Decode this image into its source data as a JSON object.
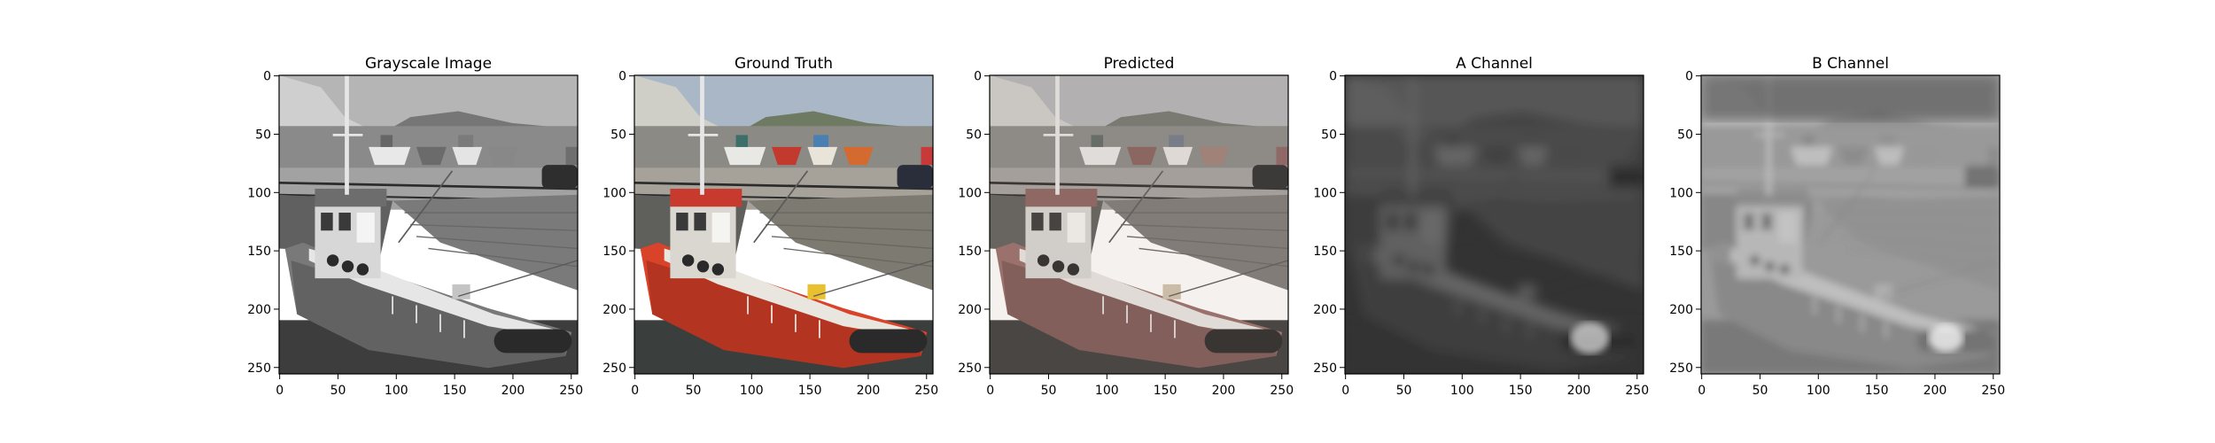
{
  "figure": {
    "panels": [
      {
        "title": "Grayscale Image",
        "mode": "gray"
      },
      {
        "title": "Ground Truth",
        "mode": "color"
      },
      {
        "title": "Predicted",
        "mode": "pred"
      },
      {
        "title": "A Channel",
        "mode": "chanA"
      },
      {
        "title": "B Channel",
        "mode": "chanB"
      }
    ],
    "x_ticks": [
      "0",
      "50",
      "100",
      "150",
      "200",
      "250"
    ],
    "y_ticks": [
      "0",
      "50",
      "100",
      "150",
      "200",
      "250"
    ]
  },
  "colors": {
    "sky": "#aab7c6",
    "hull_red": "#d9432a",
    "dock_gray": "#8a8a86",
    "water_dark": "#3a3e3c",
    "chanA_bg": "#3c3c3c",
    "chanB_bg": "#8c8c8c"
  }
}
